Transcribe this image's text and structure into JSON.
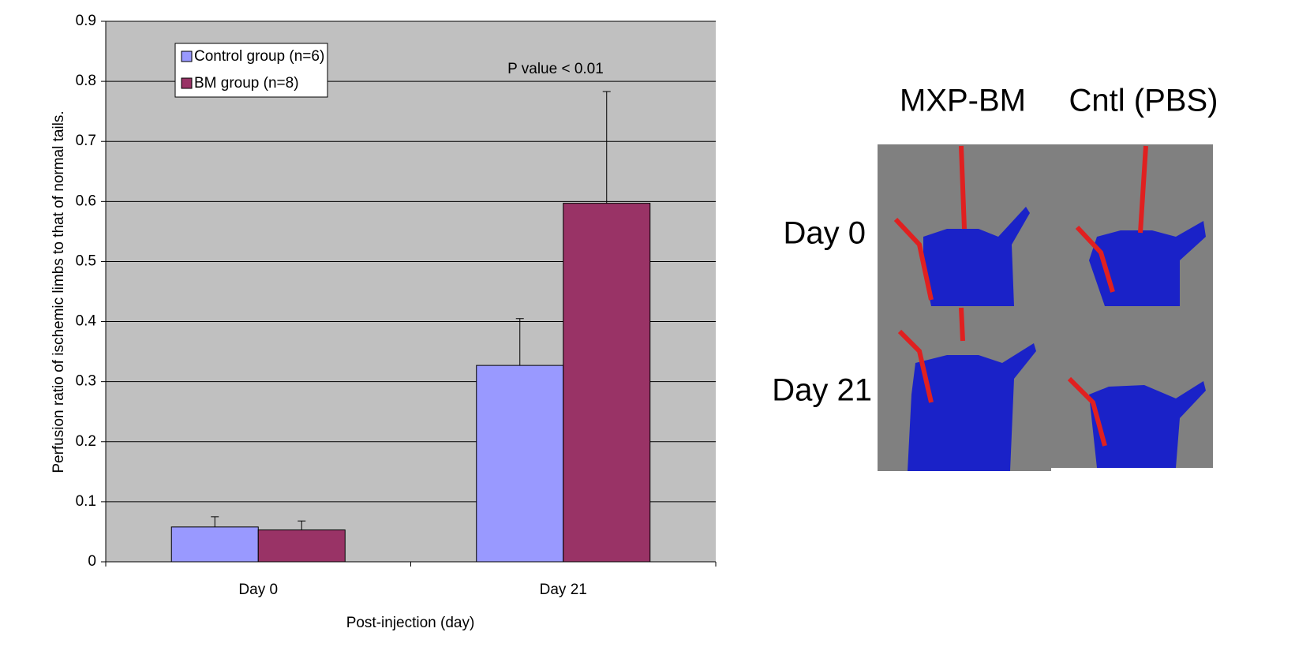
{
  "chart_data": {
    "type": "bar",
    "y_label": "Perfusion ratio of ischemic limbs to that of normal tails.",
    "x_label": "Post-injection (day)",
    "annotation": "P value < 0.01",
    "categories": [
      "Day 0",
      "Day 21"
    ],
    "series": [
      {
        "name": "Control group (n=6)",
        "color": "#9999ff",
        "values": [
          0.058,
          0.327
        ],
        "errors": [
          0.017,
          0.078
        ]
      },
      {
        "name": "BM group (n=8)",
        "color": "#993366",
        "values": [
          0.053,
          0.597
        ],
        "errors": [
          0.015,
          0.186
        ]
      }
    ],
    "ylim": [
      0,
      0.9
    ],
    "yticks": [
      0,
      0.1,
      0.2,
      0.3,
      0.4,
      0.5,
      0.6,
      0.7,
      0.8,
      0.9
    ],
    "grid": true,
    "legend": "top-left"
  },
  "image_panel": {
    "column_labels": [
      "MXP-BM",
      "Cntl (PBS)"
    ],
    "row_labels": [
      "Day 0",
      "Day 21"
    ]
  }
}
